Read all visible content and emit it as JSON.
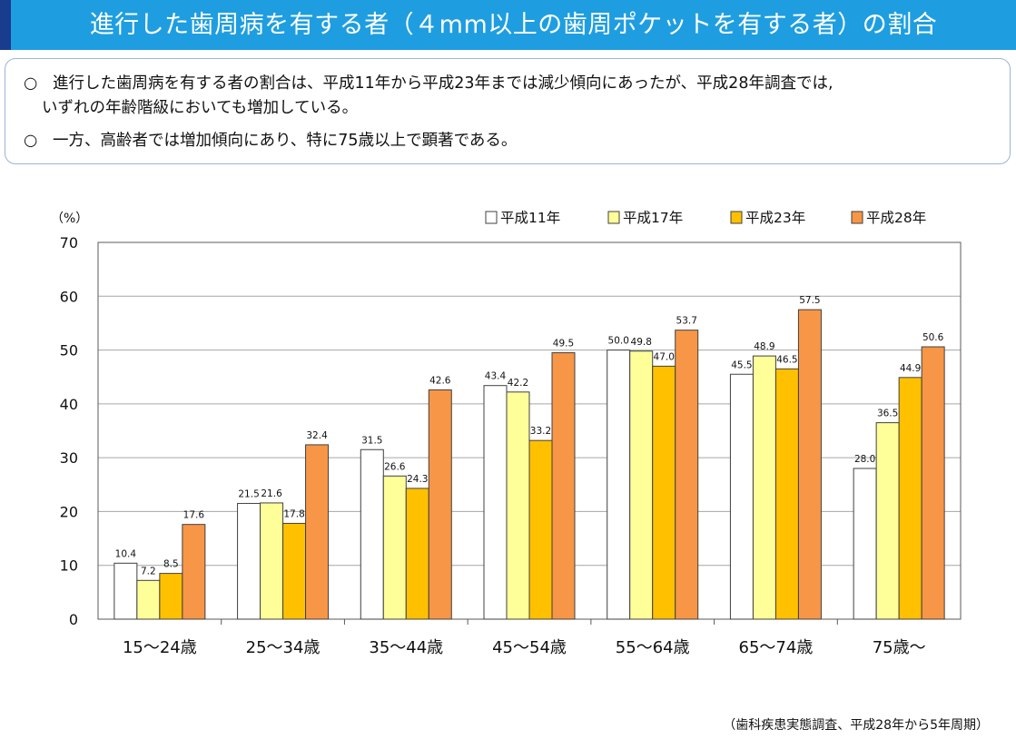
{
  "title": "進行した歯周病を有する者（４mm以上の歯周ポケットを有する者）の割合",
  "summary": {
    "bullet_mark": "○",
    "line1": "進行した歯周病を有する者の割合は、平成11年から平成23年までは減少傾向にあったが、平成28年調査では,",
    "line1_cont": "いずれの年齢階級においても増加している。",
    "line2": "一方、高齢者では増加傾向にあり、特に75歳以上で顕著である。"
  },
  "source": "（歯科疾患実態調査、平成28年から5年周期）",
  "chart_data": {
    "type": "bar",
    "ylabel": "（%）",
    "ylim": [
      0,
      70
    ],
    "yticks": [
      0,
      10,
      20,
      30,
      40,
      50,
      60,
      70
    ],
    "legend_position": "top-right",
    "categories": [
      "15～24歳",
      "25～34歳",
      "35～44歳",
      "45～54歳",
      "55～64歳",
      "65～74歳",
      "75歳～"
    ],
    "series": [
      {
        "name": "平成11年",
        "color": "#ffffff",
        "values": [
          10.4,
          21.5,
          31.5,
          43.4,
          50.0,
          45.5,
          28.0
        ],
        "labels": [
          "10.4",
          "21.5",
          "31.5",
          "43.4",
          "50.0",
          "45.5",
          "28.0"
        ]
      },
      {
        "name": "平成17年",
        "color": "#ffff99",
        "values": [
          7.2,
          21.6,
          26.6,
          42.2,
          49.8,
          48.9,
          36.5
        ],
        "labels": [
          "7.2",
          "21.6",
          "26.6",
          "42.2",
          "49.8",
          "48.9",
          "36.5"
        ]
      },
      {
        "name": "平成23年",
        "color": "#ffc000",
        "values": [
          8.5,
          17.8,
          24.3,
          33.2,
          47.0,
          46.5,
          44.9
        ],
        "labels": [
          "8.5",
          "17.8",
          "24.3",
          "33.2",
          "47.0",
          "46.5",
          "44.9"
        ]
      },
      {
        "name": "平成28年",
        "color": "#f79646",
        "values": [
          17.6,
          32.4,
          42.6,
          49.5,
          53.7,
          57.5,
          50.6
        ],
        "labels": [
          "17.6",
          "32.4",
          "42.6",
          "49.5",
          "53.7",
          "57.5",
          "50.6"
        ]
      }
    ]
  }
}
